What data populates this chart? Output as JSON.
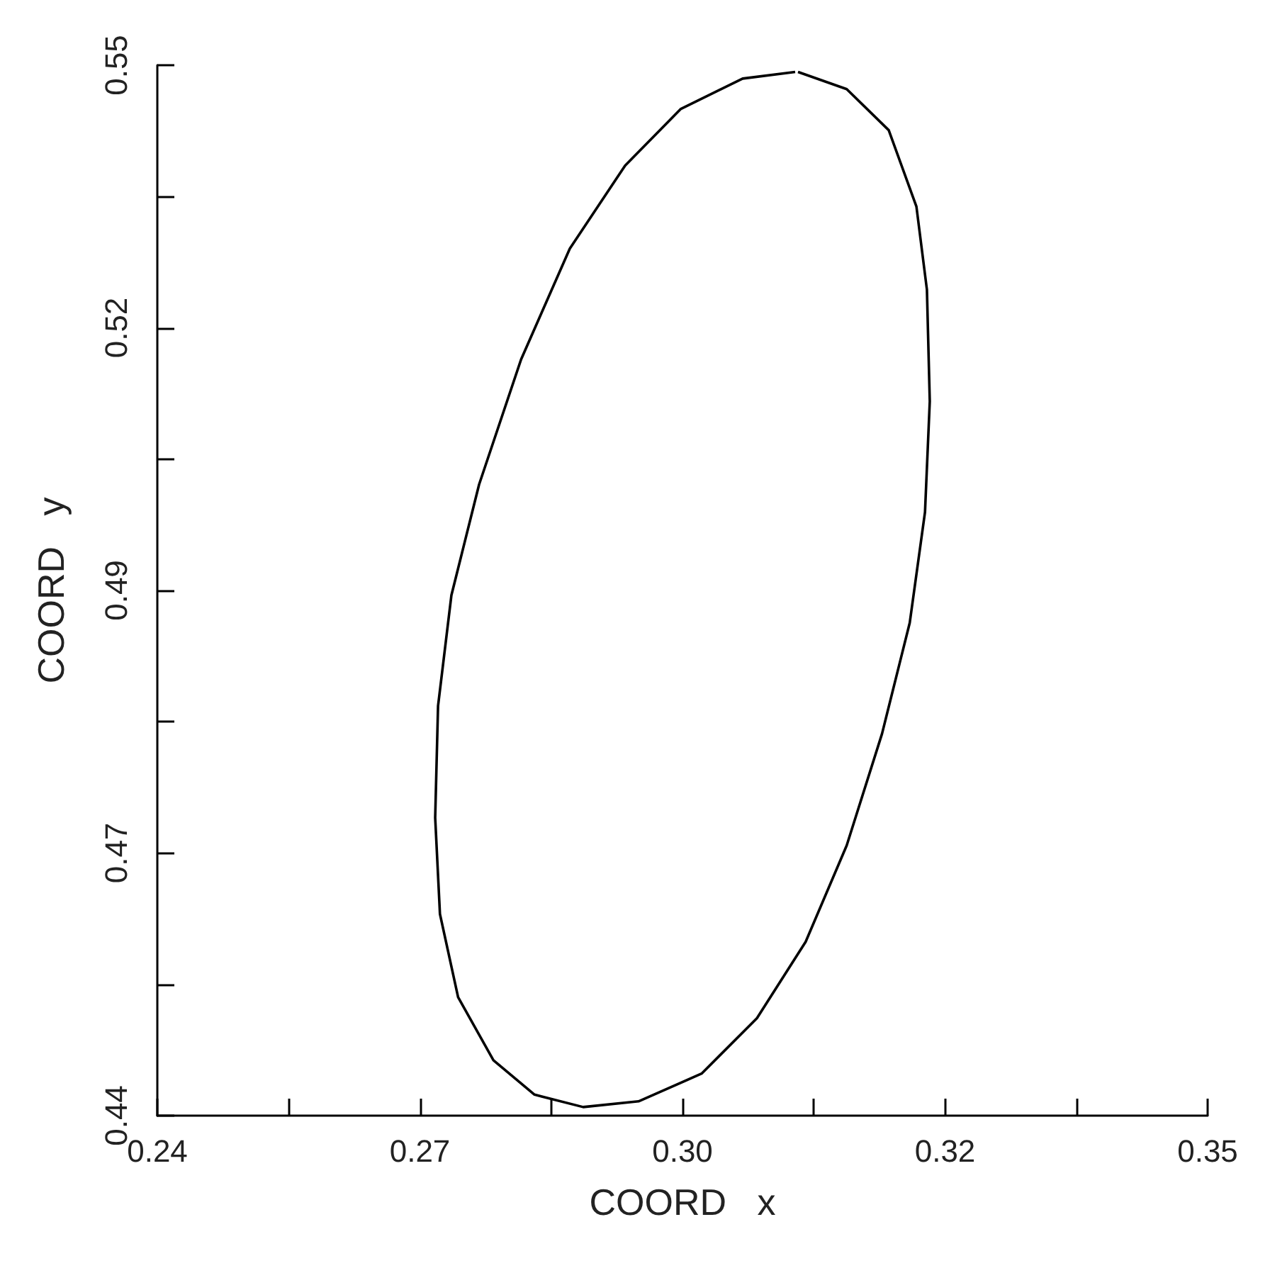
{
  "chart_data": {
    "type": "line",
    "xlabel": "COORD   x",
    "ylabel": "COORD   y",
    "xlim": [
      0.24,
      0.35
    ],
    "xticks": [
      {
        "value": 0.24,
        "label": "0.24"
      },
      {
        "value": 0.25375,
        "label": null
      },
      {
        "value": 0.2675,
        "label": "0.27"
      },
      {
        "value": 0.28125,
        "label": null
      },
      {
        "value": 0.295,
        "label": "0.30"
      },
      {
        "value": 0.30875,
        "label": null
      },
      {
        "value": 0.3225,
        "label": "0.32"
      },
      {
        "value": 0.33625,
        "label": null
      },
      {
        "value": 0.35,
        "label": "0.35"
      }
    ],
    "ylim": [
      0.44,
      0.55
    ],
    "yticks": [
      {
        "value": 0.44,
        "label": "0.44"
      },
      {
        "value": 0.45375,
        "label": null
      },
      {
        "value": 0.4675,
        "label": "0.47"
      },
      {
        "value": 0.48125,
        "label": null
      },
      {
        "value": 0.495,
        "label": "0.49"
      },
      {
        "value": 0.50875,
        "label": null
      },
      {
        "value": 0.5225,
        "label": "0.52"
      },
      {
        "value": 0.53625,
        "label": null
      },
      {
        "value": 0.55,
        "label": "0.55"
      }
    ],
    "grid": false,
    "series": [
      {
        "color": "#000000",
        "x": [
          0.3071,
          0.3122,
          0.3166,
          0.3195,
          0.3206,
          0.3209,
          0.3204,
          0.3188,
          0.3159,
          0.3122,
          0.3079,
          0.3028,
          0.297,
          0.2904,
          0.2846,
          0.2795,
          0.2752,
          0.2715,
          0.2696,
          0.2691,
          0.2694,
          0.2708,
          0.2737,
          0.2781,
          0.2832,
          0.289,
          0.2948,
          0.3013,
          0.3068
        ],
        "values": [
          0.5493,
          0.5475,
          0.5432,
          0.5352,
          0.5265,
          0.5148,
          0.5032,
          0.4916,
          0.48,
          0.4683,
          0.4582,
          0.4502,
          0.4444,
          0.4415,
          0.4409,
          0.4422,
          0.4458,
          0.4524,
          0.4611,
          0.4712,
          0.4829,
          0.4945,
          0.5061,
          0.5192,
          0.5308,
          0.5395,
          0.5454,
          0.5486,
          0.5493
        ]
      }
    ]
  }
}
